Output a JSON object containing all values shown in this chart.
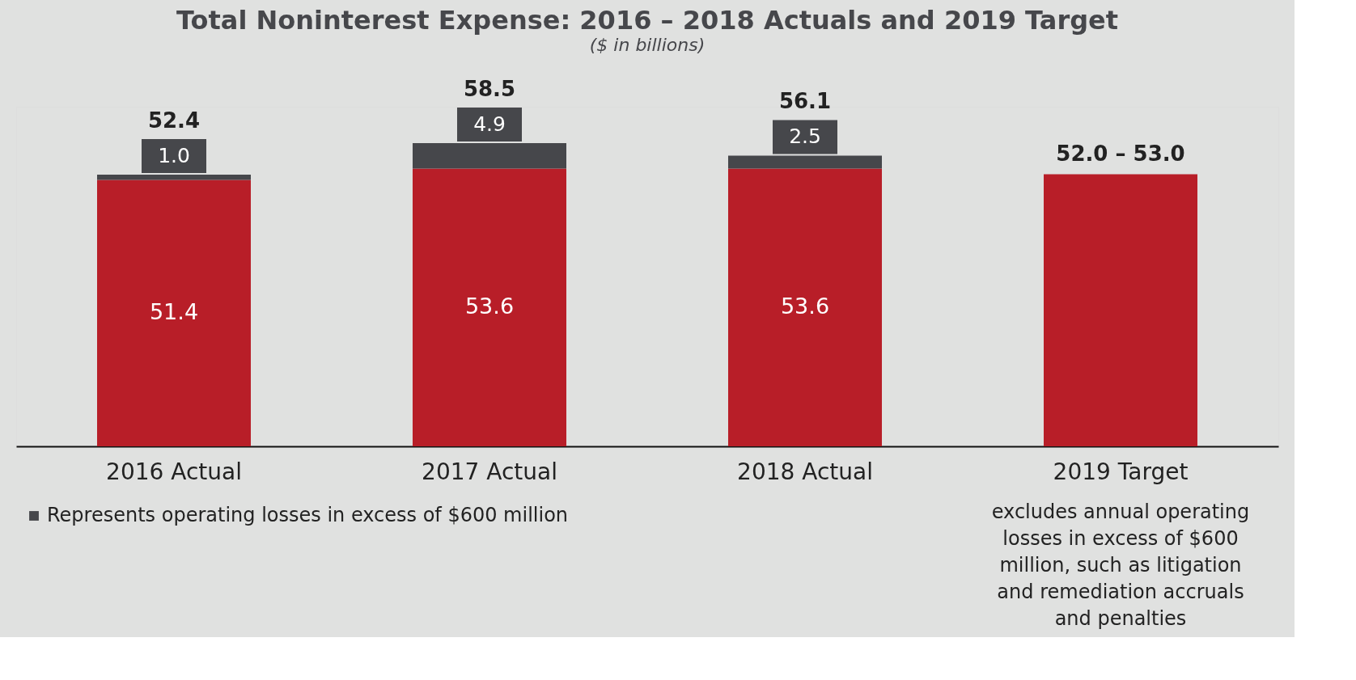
{
  "chart_data": {
    "type": "bar",
    "title": "Total Noninterest Expense: 2016 – 2018 Actuals and 2019 Target",
    "subtitle": "($ in billions)",
    "categories": [
      "2016 Actual",
      "2017 Actual",
      "2018 Actual",
      "2019 Target"
    ],
    "stacked": true,
    "series": [
      {
        "color": "#b81e28",
        "values": [
          51.4,
          53.6,
          53.6,
          52.5
        ],
        "value_labels": [
          "51.4",
          "53.6",
          "53.6",
          null
        ]
      },
      {
        "name": "Represents operating losses in excess of $600 million",
        "color": "#46474b",
        "values": [
          1.0,
          4.9,
          2.5,
          null
        ],
        "value_labels": [
          "1.0",
          "4.9",
          "2.5",
          null
        ]
      }
    ],
    "totals": [
      "52.4",
      "58.5",
      "56.1",
      "52.0 – 53.0"
    ],
    "legend": "bottom",
    "annotations": [
      "excludes annual operating losses in excess of $600 million, such as litigation and remediation accruals and penalties"
    ]
  }
}
